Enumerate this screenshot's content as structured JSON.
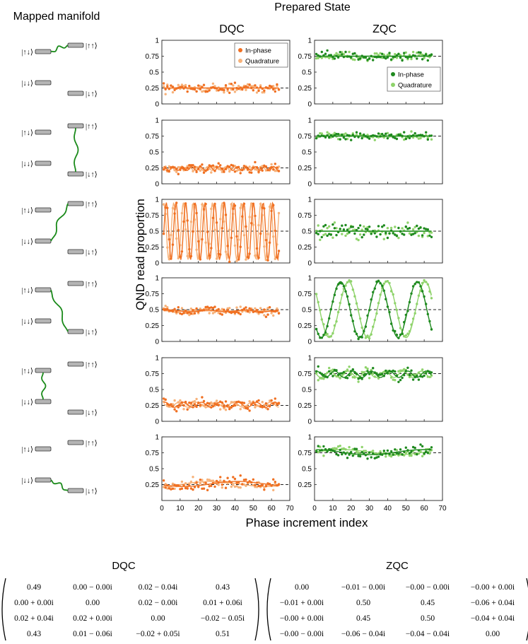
{
  "titles": {
    "prepared_state": "Prepared State",
    "mapped_manifold": "Mapped manifold",
    "dqc": "DQC",
    "zqc": "ZQC",
    "ylabel": "QND read proportion",
    "xlabel": "Phase increment index"
  },
  "manifold_labels": [
    "|↑↓⟩",
    "|↓↓⟩",
    "|↑↑⟩",
    "|↓↑⟩"
  ],
  "colors": {
    "dqc_inphase": "#f07022",
    "dqc_quadrature": "#f7b27a",
    "zqc_inphase": "#1f8a1f",
    "zqc_quadrature": "#8fd36b",
    "wire": "#1a8a1a",
    "level_fill": "#b5b5b5"
  },
  "legend": {
    "dqc": [
      "In-phase",
      "Quadrature"
    ],
    "zqc": [
      "In-phase",
      "Quadrature"
    ]
  },
  "axis": {
    "xticks": [
      "0",
      "10",
      "20",
      "30",
      "40",
      "50",
      "60",
      "70"
    ],
    "yticks_full": [
      "0",
      "0.25",
      "0.5",
      "0.75",
      "1"
    ],
    "yticks_row6": [
      "0.25",
      "0.5",
      "0.75",
      "1"
    ]
  },
  "chart_data": {
    "type": "scatter",
    "x_range": [
      0,
      70
    ],
    "y_range": [
      0,
      1
    ],
    "points_per_series": 64,
    "panels": [
      {
        "row": 1,
        "column": "DQC",
        "mean": 0.25,
        "reference": 0.25,
        "inphase_fit": {
          "amplitude": 0.0,
          "period": 10,
          "phase": 0
        },
        "quadrature_fit": {
          "amplitude": 0.0,
          "period": 10,
          "phase": 0
        },
        "noise": 0.06
      },
      {
        "row": 1,
        "column": "ZQC",
        "mean": 0.75,
        "reference": 0.75,
        "inphase_fit": {
          "amplitude": 0.0,
          "period": 10,
          "phase": 0
        },
        "quadrature_fit": {
          "amplitude": 0.0,
          "period": 10,
          "phase": 0
        },
        "noise": 0.06
      },
      {
        "row": 2,
        "column": "DQC",
        "mean": 0.24,
        "reference": 0.25,
        "inphase_fit": {
          "amplitude": 0.03,
          "period": 5,
          "phase": 0
        },
        "quadrature_fit": {
          "amplitude": 0.03,
          "period": 5,
          "phase": 1.6
        },
        "noise": 0.05
      },
      {
        "row": 2,
        "column": "ZQC",
        "mean": 0.75,
        "reference": 0.75,
        "inphase_fit": {
          "amplitude": 0.0,
          "period": 10,
          "phase": 0
        },
        "quadrature_fit": {
          "amplitude": 0.0,
          "period": 10,
          "phase": 0
        },
        "noise": 0.05
      },
      {
        "row": 3,
        "column": "DQC",
        "mean": 0.5,
        "reference": 0.5,
        "inphase_fit": {
          "amplitude": 0.45,
          "period": 5.3,
          "phase": -1.3
        },
        "quadrature_fit": {
          "amplitude": 0.45,
          "period": 5.3,
          "phase": 0.2
        },
        "noise": 0.03
      },
      {
        "row": 3,
        "column": "ZQC",
        "mean": 0.5,
        "reference": 0.5,
        "inphase_fit": {
          "amplitude": 0.0,
          "period": 10,
          "phase": 0
        },
        "quadrature_fit": {
          "amplitude": 0.0,
          "period": 10,
          "phase": 0
        },
        "noise": 0.1
      },
      {
        "row": 4,
        "column": "DQC",
        "mean": 0.48,
        "reference": 0.5,
        "inphase_fit": {
          "amplitude": 0.015,
          "period": 20,
          "phase": 0
        },
        "quadrature_fit": {
          "amplitude": 0.0,
          "period": 20,
          "phase": 0
        },
        "noise": 0.06
      },
      {
        "row": 4,
        "column": "ZQC",
        "mean": 0.5,
        "reference": 0.5,
        "inphase_fit": {
          "amplitude": 0.44,
          "period": 21,
          "phase": 3.6
        },
        "quadrature_fit": {
          "amplitude": 0.44,
          "period": 21,
          "phase": 2.3
        },
        "noise": 0.04
      },
      {
        "row": 5,
        "column": "DQC",
        "mean": 0.26,
        "reference": 0.25,
        "inphase_fit": {
          "amplitude": 0.04,
          "period": 10,
          "phase": 0.5
        },
        "quadrature_fit": {
          "amplitude": 0.04,
          "period": 10,
          "phase": 2.0
        },
        "noise": 0.06
      },
      {
        "row": 5,
        "column": "ZQC",
        "mean": 0.74,
        "reference": 0.75,
        "inphase_fit": {
          "amplitude": 0.05,
          "period": 10,
          "phase": 0.9
        },
        "quadrature_fit": {
          "amplitude": 0.05,
          "period": 10,
          "phase": 2.5
        },
        "noise": 0.06
      },
      {
        "row": 6,
        "column": "DQC",
        "mean": 0.26,
        "reference": 0.25,
        "inphase_fit": {
          "amplitude": 0.04,
          "period": 60,
          "phase": 3.5
        },
        "quadrature_fit": {
          "amplitude": 0.04,
          "period": 60,
          "phase": 5.0
        },
        "noise": 0.07
      },
      {
        "row": 6,
        "column": "ZQC",
        "mean": 0.76,
        "reference": 0.75,
        "inphase_fit": {
          "amplitude": 0.04,
          "period": 60,
          "phase": 1.6
        },
        "quadrature_fit": {
          "amplitude": 0.04,
          "period": 60,
          "phase": 0.0
        },
        "noise": 0.06
      }
    ]
  },
  "matrices": {
    "dqc": {
      "title": "DQC",
      "rows": [
        [
          "0.49",
          "0.00 − 0.00i",
          "0.02 − 0.04i",
          "0.43"
        ],
        [
          "0.00 + 0.00i",
          "0.00",
          "0.02 − 0.00i",
          "0.01 + 0.06i"
        ],
        [
          "0.02 + 0.04i",
          "0.02 + 0.00i",
          "0.00",
          "−0.02 − 0.05i"
        ],
        [
          "0.43",
          "0.01 − 0.06i",
          "−0.02 + 0.05i",
          "0.51"
        ]
      ]
    },
    "zqc": {
      "title": "ZQC",
      "rows": [
        [
          "0.00",
          "−0.01 − 0.00i",
          "−0.00 − 0.00i",
          "−0.00 + 0.00i"
        ],
        [
          "−0.01 + 0.00i",
          "0.50",
          "0.45",
          "−0.06 + 0.04i"
        ],
        [
          "−0.00 + 0.00i",
          "0.45",
          "0.50",
          "−0.04 + 0.04i"
        ],
        [
          "−0.00 − 0.00i",
          "−0.06 − 0.04i",
          "−0.04 − 0.04i",
          "0.00"
        ]
      ]
    }
  }
}
